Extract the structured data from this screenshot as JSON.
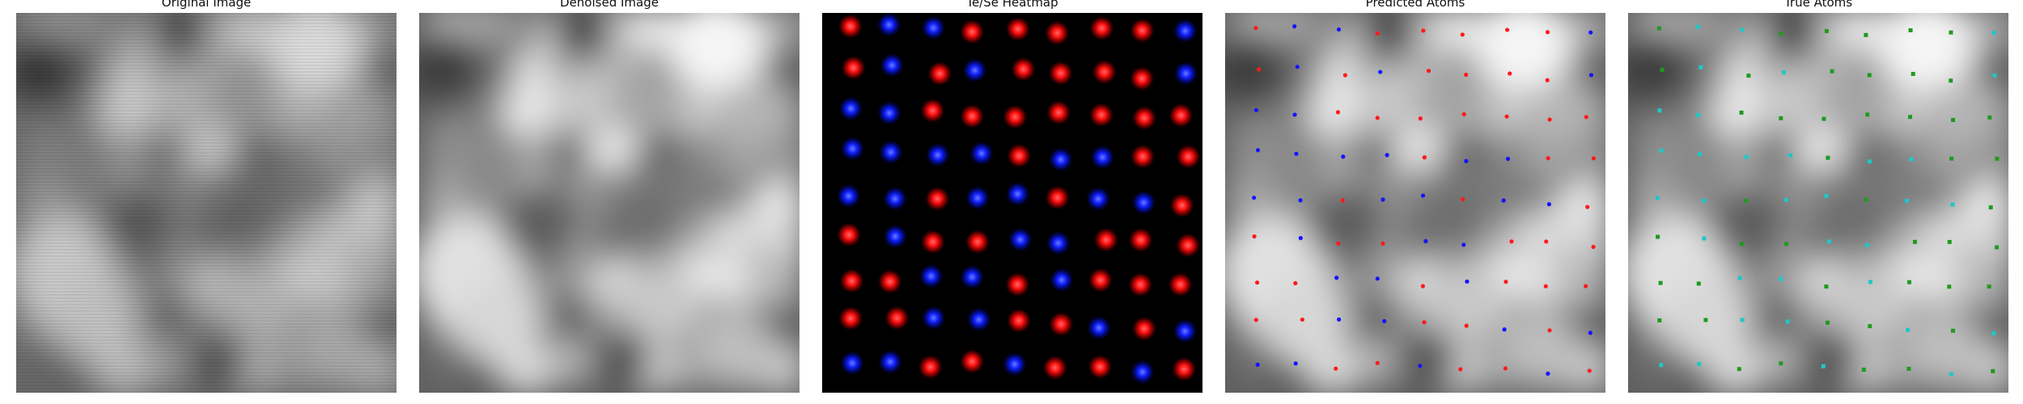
{
  "panels": [
    {
      "id": "original",
      "title": "Original Image"
    },
    {
      "id": "denoised",
      "title": "Denoised Image"
    },
    {
      "id": "heatmap",
      "title": "Te/Se Heatmap"
    },
    {
      "id": "predicted",
      "title": "Predicted Atoms"
    },
    {
      "id": "true",
      "title": "True Atoms"
    }
  ],
  "colors": {
    "heatmap_te": "#ff2020",
    "heatmap_se": "#1e2cff",
    "predicted_te": "#ff1a1a",
    "predicted_se": "#1414ff",
    "true_te": "#1ec8c8",
    "true_se": "#1e9b1e"
  },
  "marker_style": {
    "predicted": "dot",
    "true": "square"
  }
}
